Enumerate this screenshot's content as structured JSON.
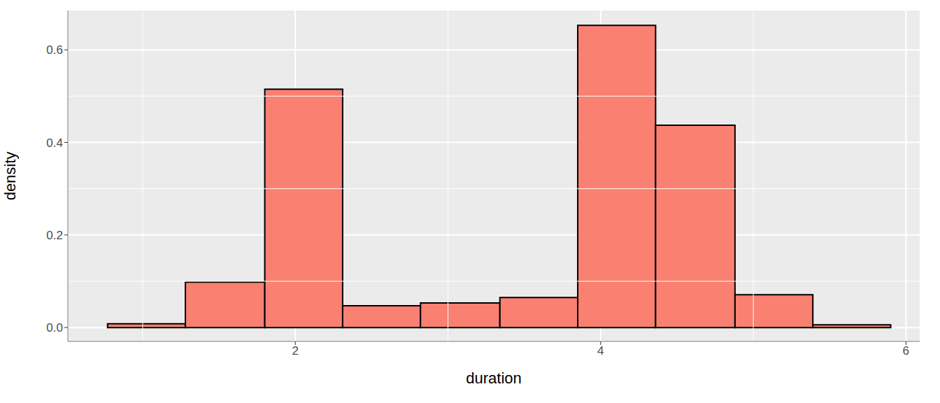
{
  "chart_data": {
    "type": "histogram",
    "x_label": "duration",
    "y_label": "density",
    "bins": [
      0.77,
      1.28,
      1.8,
      2.31,
      2.82,
      3.34,
      3.85,
      4.36,
      4.88,
      5.39,
      5.9
    ],
    "values": [
      0.008,
      0.098,
      0.515,
      0.047,
      0.053,
      0.065,
      0.653,
      0.437,
      0.071,
      0.006
    ],
    "color": "#FA8072",
    "xlim": [
      0.51,
      6.09
    ],
    "ylim": [
      -0.03,
      0.685
    ],
    "xticks": [
      2,
      4,
      6
    ],
    "yticks": [
      {
        "value": 0,
        "label": "0.0"
      },
      0.2,
      0.4,
      0.6
    ],
    "grid": true
  }
}
